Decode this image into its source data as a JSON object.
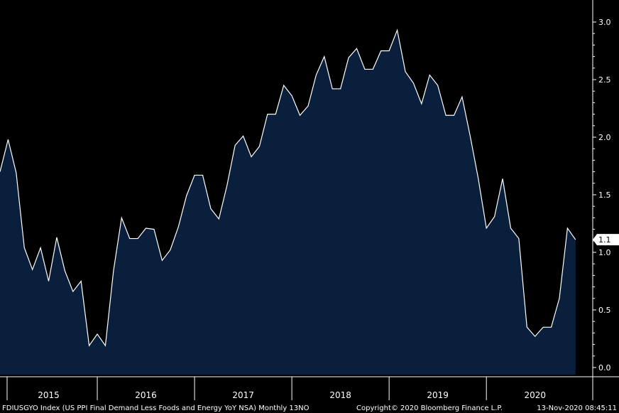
{
  "chart_data": {
    "type": "area",
    "frequency": "monthly",
    "x_start": "2015-01",
    "x": [
      "2015-01",
      "2015-02",
      "2015-03",
      "2015-04",
      "2015-05",
      "2015-06",
      "2015-07",
      "2015-08",
      "2015-09",
      "2015-10",
      "2015-11",
      "2015-12",
      "2016-01",
      "2016-02",
      "2016-03",
      "2016-04",
      "2016-05",
      "2016-06",
      "2016-07",
      "2016-08",
      "2016-09",
      "2016-10",
      "2016-11",
      "2016-12",
      "2017-01",
      "2017-02",
      "2017-03",
      "2017-04",
      "2017-05",
      "2017-06",
      "2017-07",
      "2017-08",
      "2017-09",
      "2017-10",
      "2017-11",
      "2017-12",
      "2018-01",
      "2018-02",
      "2018-03",
      "2018-04",
      "2018-05",
      "2018-06",
      "2018-07",
      "2018-08",
      "2018-09",
      "2018-10",
      "2018-11",
      "2018-12",
      "2019-01",
      "2019-02",
      "2019-03",
      "2019-04",
      "2019-05",
      "2019-06",
      "2019-07",
      "2019-08",
      "2019-09",
      "2019-10",
      "2019-11",
      "2019-12",
      "2020-01",
      "2020-02",
      "2020-03",
      "2020-04",
      "2020-05",
      "2020-06",
      "2020-07",
      "2020-08",
      "2020-09",
      "2020-10",
      "2020-11",
      "2020-12"
    ],
    "values": [
      1.7,
      1.98,
      1.69,
      1.04,
      0.85,
      1.04,
      0.75,
      1.13,
      0.84,
      0.66,
      0.75,
      0.19,
      0.29,
      0.19,
      0.84,
      1.3,
      1.12,
      1.12,
      1.21,
      1.2,
      0.93,
      1.02,
      1.22,
      1.49,
      1.67,
      1.67,
      1.38,
      1.29,
      1.58,
      1.93,
      2.01,
      1.83,
      1.92,
      2.2,
      2.2,
      2.45,
      2.36,
      2.19,
      2.27,
      2.54,
      2.7,
      2.42,
      2.42,
      2.69,
      2.77,
      2.59,
      2.59,
      2.75,
      2.75,
      2.93,
      2.57,
      2.47,
      2.29,
      2.54,
      2.45,
      2.19,
      2.19,
      2.35,
      2.01,
      1.64,
      1.21,
      1.31,
      1.64,
      1.21,
      1.12,
      0.35,
      0.27,
      0.35,
      0.35,
      0.6,
      1.21,
      1.11
    ],
    "ylim": [
      0,
      3.0
    ],
    "y_ticks": [
      "0.0",
      "0.5",
      "1.0",
      "1.5",
      "2.0",
      "2.5",
      "3.0"
    ],
    "x_year_labels": [
      "2015",
      "2016",
      "2017",
      "2018",
      "2019",
      "2020"
    ],
    "last_value_label": "1.1",
    "axis_position": "right",
    "fill_color": "#0a1f3c",
    "line_color": "#ffffff",
    "background_color": "#000000",
    "grid": false
  },
  "footer": {
    "left": "FDIUSGYO Index (US PPI Final Demand Less Foods and Energy YoY NSA)  Monthly 13NO",
    "center": "Copyright© 2020 Bloomberg Finance L.P.",
    "right": "13-Nov-2020 08:45:11"
  }
}
